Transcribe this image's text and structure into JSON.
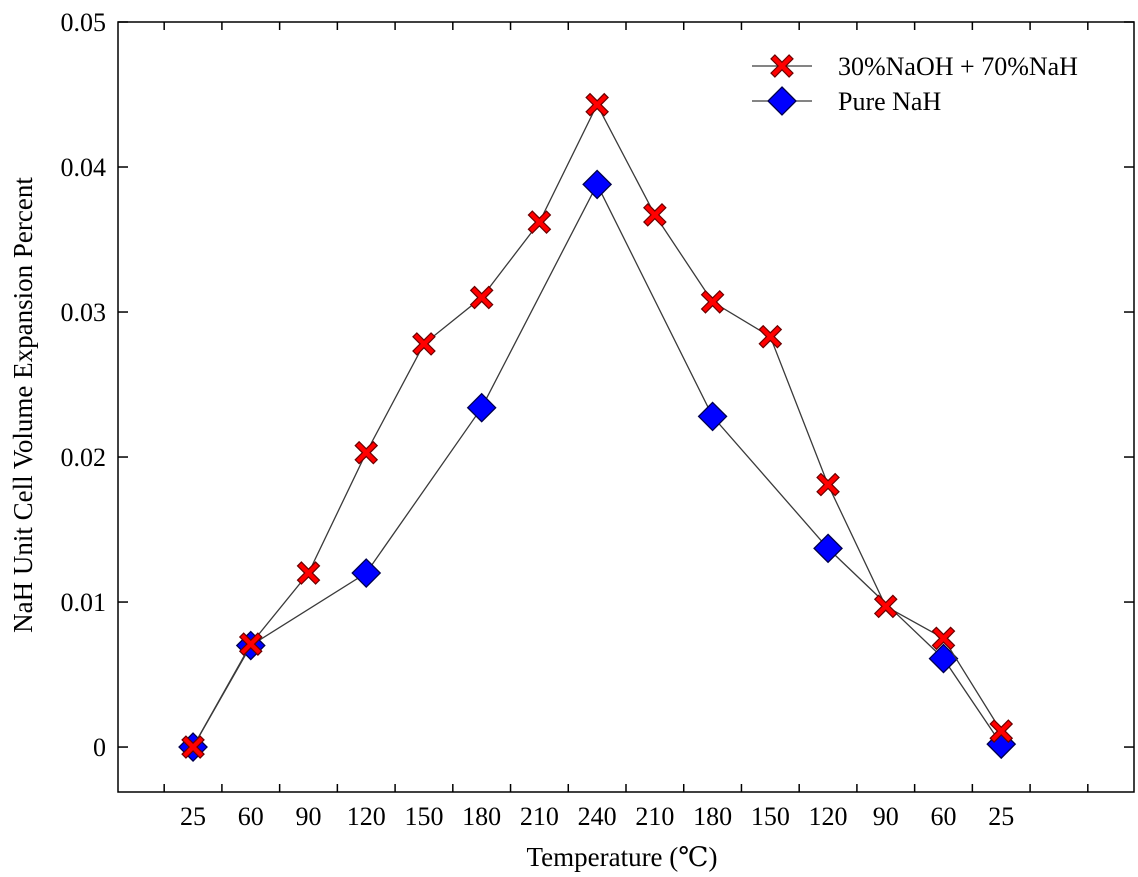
{
  "chart_data": {
    "type": "line",
    "xlabel": "Temperature (℃)",
    "ylabel": "NaH Unit Cell Volume Expansion Percent",
    "ylim": [
      -0.0031,
      0.05
    ],
    "y_ticks": [
      0,
      0.01,
      0.02,
      0.03,
      0.04,
      0.05
    ],
    "y_tick_labels": [
      "0",
      "0.01",
      "0.02",
      "0.03",
      "0.04",
      "0.05"
    ],
    "x_tick_labels": [
      "25",
      "60",
      "90",
      "120",
      "150",
      "180",
      "210",
      "240",
      "210",
      "180",
      "150",
      "120",
      "90",
      "60",
      "25"
    ],
    "x_minor_ticks": [
      -0.5,
      0.5,
      1.5,
      2.5,
      3.5,
      4.5,
      5.5,
      6.5,
      7.5,
      8.5,
      9.5,
      10.5,
      11.5,
      12.5,
      13.5,
      14.5,
      15.5
    ],
    "xlim": [
      -1.3,
      16.3
    ],
    "grid": false,
    "legend_position": "top-right",
    "series": [
      {
        "name": "30%NaOH + 70%NaH",
        "marker": "x",
        "color": "#ff0000",
        "x": [
          0,
          1,
          2,
          3,
          4,
          5,
          6,
          7,
          8,
          9,
          10,
          11,
          12,
          13,
          14
        ],
        "y": [
          0.0,
          0.0071,
          0.012,
          0.0203,
          0.0278,
          0.031,
          0.0362,
          0.0443,
          0.0367,
          0.0307,
          0.0283,
          0.0181,
          0.0097,
          0.0075,
          0.0011
        ]
      },
      {
        "name": "Pure NaH",
        "marker": "diamond",
        "color": "#0000ff",
        "x": [
          0,
          1,
          3,
          5,
          7,
          9,
          11,
          13,
          14
        ],
        "y": [
          0.0,
          0.007,
          0.012,
          0.0234,
          0.0388,
          0.0228,
          0.0137,
          0.0061,
          0.0002
        ]
      }
    ]
  }
}
